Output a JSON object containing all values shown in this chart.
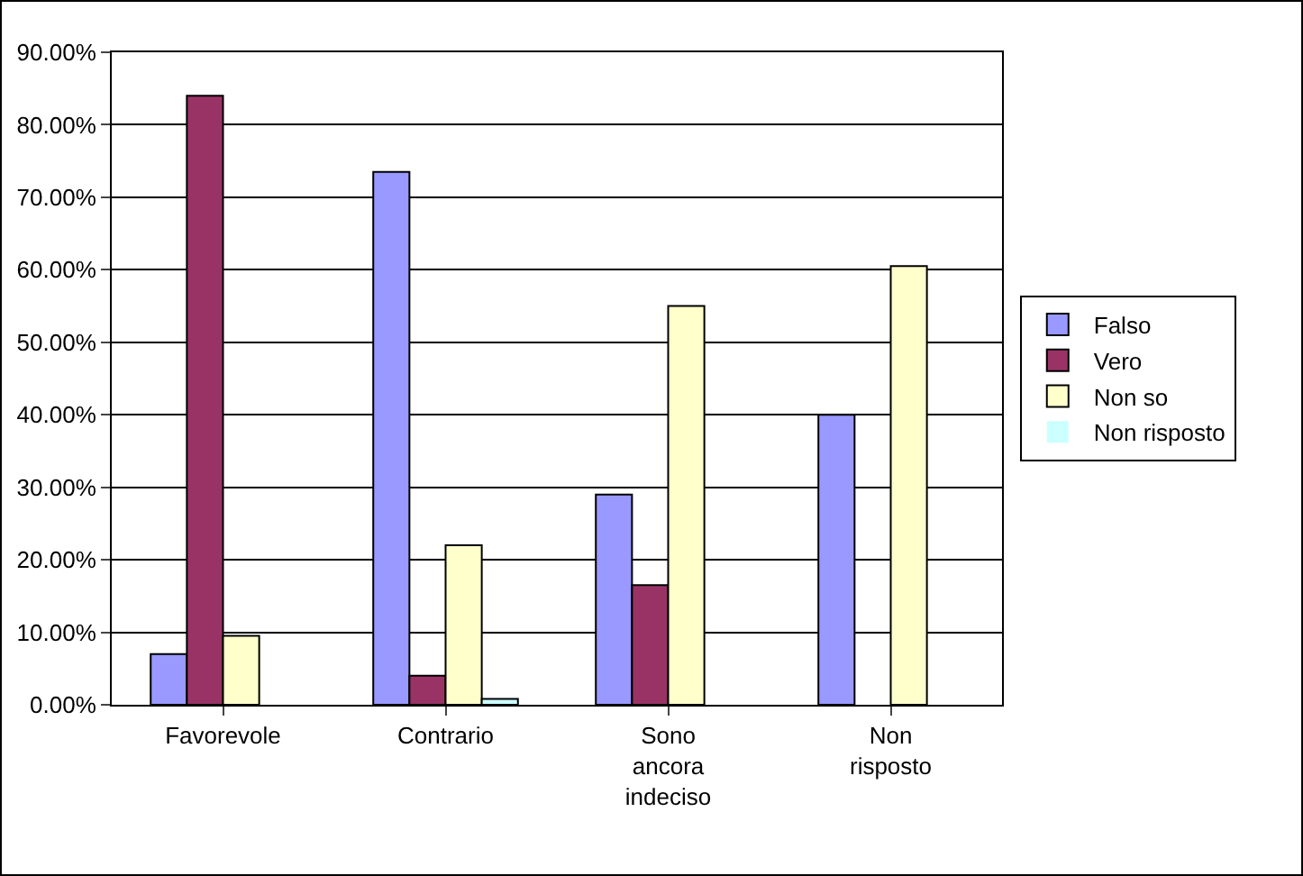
{
  "chart_data": {
    "type": "bar",
    "categories": [
      "Favorevole",
      "Contrario",
      "Sono ancora indeciso",
      "Non risposto"
    ],
    "series": [
      {
        "name": "Falso",
        "color": "#9999ff",
        "values": [
          7.0,
          73.5,
          29.0,
          40.0
        ]
      },
      {
        "name": "Vero",
        "color": "#993366",
        "values": [
          84.0,
          4.0,
          16.5,
          0
        ]
      },
      {
        "name": "Non so",
        "color": "#ffffcc",
        "values": [
          9.5,
          22.0,
          55.0,
          60.5
        ]
      },
      {
        "name": "Non risposto",
        "color": "#ccffff",
        "values": [
          0,
          0.8,
          0,
          0
        ]
      }
    ],
    "ylim": [
      0,
      90
    ],
    "yticks": [
      {
        "value": 0,
        "label": "0.00%"
      },
      {
        "value": 10,
        "label": "10.00%"
      },
      {
        "value": 20,
        "label": "20.00%"
      },
      {
        "value": 30,
        "label": "30.00%"
      },
      {
        "value": 40,
        "label": "40.00%"
      },
      {
        "value": 50,
        "label": "50.00%"
      },
      {
        "value": 60,
        "label": "60.00%"
      },
      {
        "value": 70,
        "label": "70.00%"
      },
      {
        "value": 80,
        "label": "80.00%"
      },
      {
        "value": 90,
        "label": "90.00%"
      }
    ],
    "grid": "y",
    "legend": "right"
  }
}
